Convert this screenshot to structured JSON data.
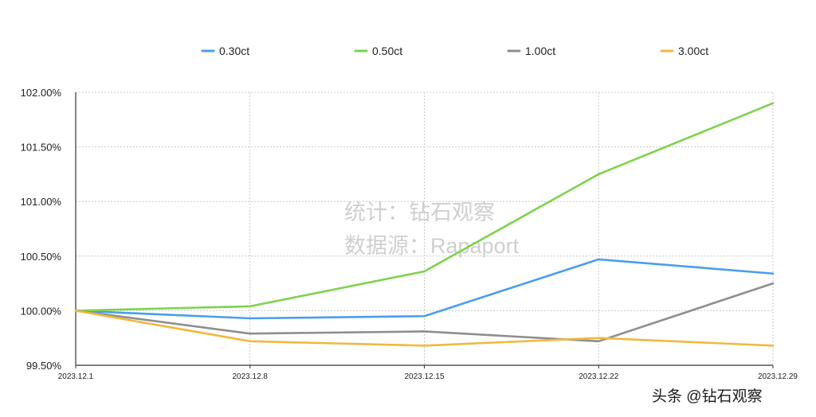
{
  "chart_data": {
    "type": "line",
    "x": [
      "2023.12.1",
      "2023.12.8",
      "2023.12.15",
      "2023.12.22",
      "2023.12.29"
    ],
    "ylim": [
      99.5,
      102.0
    ],
    "yticks": [
      "99.50%",
      "100.00%",
      "100.50%",
      "101.00%",
      "101.50%",
      "102.00%"
    ],
    "ytick_values": [
      99.5,
      100.0,
      100.5,
      101.0,
      101.5,
      102.0
    ],
    "grid": true,
    "legend_position": "top",
    "series": [
      {
        "name": "0.30ct",
        "color": "#4a9df0",
        "values": [
          100.0,
          99.93,
          99.95,
          100.47,
          100.34
        ]
      },
      {
        "name": "0.50ct",
        "color": "#7ed24e",
        "values": [
          100.0,
          100.04,
          100.36,
          101.25,
          101.9
        ]
      },
      {
        "name": "1.00ct",
        "color": "#8e8e8e",
        "values": [
          100.0,
          99.79,
          99.81,
          99.72,
          100.25
        ]
      },
      {
        "name": "3.00ct",
        "color": "#f0b93e",
        "values": [
          100.0,
          99.72,
          99.68,
          99.75,
          99.68
        ]
      }
    ]
  },
  "watermark": {
    "line1": "统计：钻石观察",
    "line2": "数据源：Rapaport"
  },
  "footer": {
    "text": "头条 @钻石观察"
  }
}
